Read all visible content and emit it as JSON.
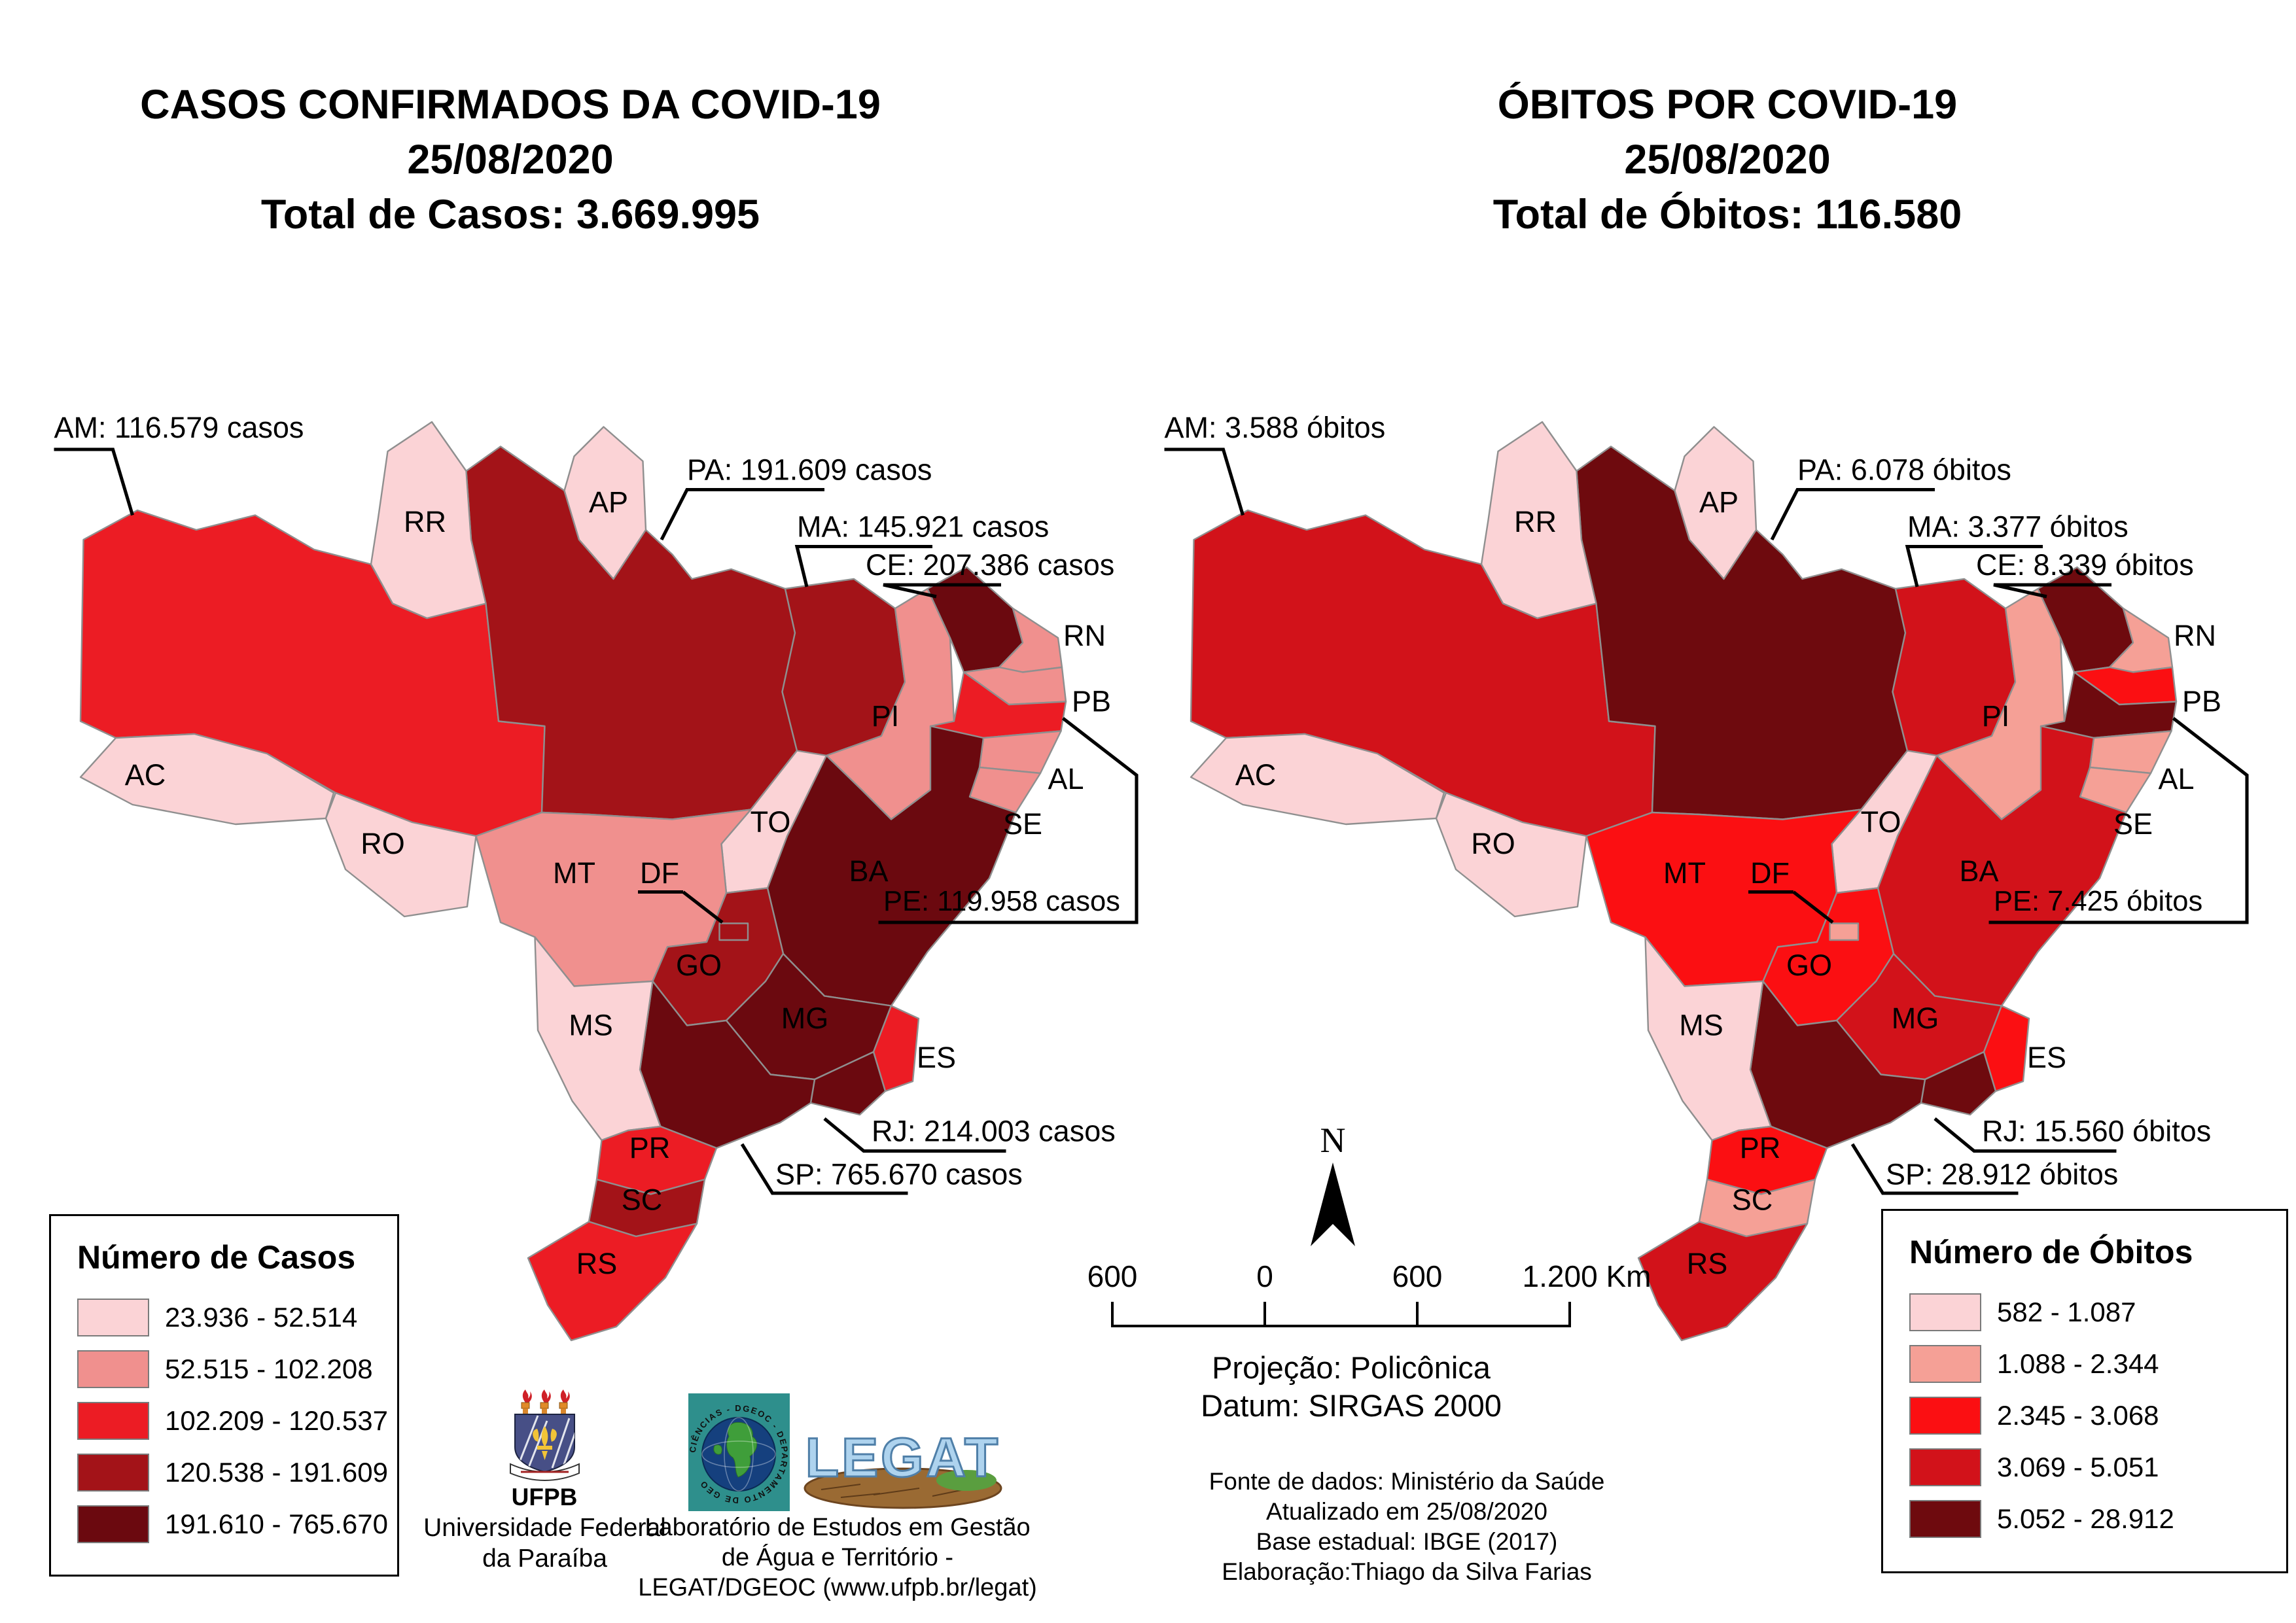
{
  "left_panel": {
    "title": {
      "line1": "CASOS CONFIRMADOS DA COVID-19",
      "line2": "25/08/2020",
      "line3": "Total de Casos: 3.669.995"
    },
    "legend": {
      "title": "Número de Casos",
      "classes": [
        {
          "range": "23.936 - 52.514",
          "color": "#FBD3D6"
        },
        {
          "range": "52.515 - 102.208",
          "color": "#F0908E"
        },
        {
          "range": "102.209 - 120.537",
          "color": "#EC1C24"
        },
        {
          "range": "120.538 - 191.609",
          "color": "#A31318"
        },
        {
          "range": "191.610 - 765.670",
          "color": "#6B090F"
        }
      ]
    },
    "annotations": [
      {
        "state": "AM",
        "text": "AM: 116.579 casos"
      },
      {
        "state": "PA",
        "text": "PA: 191.609 casos"
      },
      {
        "state": "MA",
        "text": "MA: 145.921 casos"
      },
      {
        "state": "CE",
        "text": "CE: 207.386 casos"
      },
      {
        "state": "PE",
        "text": "PE: 119.958 casos"
      },
      {
        "state": "RJ",
        "text": "RJ: 214.003 casos"
      },
      {
        "state": "SP",
        "text": "SP: 765.670 casos"
      }
    ],
    "state_classes": {
      "AC": 1,
      "RO": 1,
      "RR": 1,
      "AP": 1,
      "TO": 1,
      "MS": 1,
      "MT": 2,
      "PI": 2,
      "RN": 2,
      "PB": 2,
      "AL": 2,
      "SE": 2,
      "AM": 3,
      "PE": 3,
      "ES": 3,
      "PR": 3,
      "RS": 3,
      "PA": 4,
      "MA": 4,
      "GO": 4,
      "DF": 4,
      "SC": 4,
      "CE": 5,
      "BA": 5,
      "MG": 5,
      "RJ": 5,
      "SP": 5
    }
  },
  "right_panel": {
    "title": {
      "line1": "ÓBITOS POR COVID-19",
      "line2": "25/08/2020",
      "line3": "Total de Óbitos: 116.580"
    },
    "legend": {
      "title": "Número de Óbitos",
      "classes": [
        {
          "range": "582 - 1.087",
          "color": "#FBD3D6"
        },
        {
          "range": "1.088 - 2.344",
          "color": "#F5A096"
        },
        {
          "range": "2.345 - 3.068",
          "color": "#FB0F12"
        },
        {
          "range": "3.069 - 5.051",
          "color": "#D2121A"
        },
        {
          "range": "5.052 - 28.912",
          "color": "#6E0A0E"
        }
      ]
    },
    "annotations": [
      {
        "state": "AM",
        "text": "AM: 3.588 óbitos"
      },
      {
        "state": "PA",
        "text": "PA: 6.078 óbitos"
      },
      {
        "state": "MA",
        "text": "MA: 3.377 óbitos"
      },
      {
        "state": "CE",
        "text": "CE: 8.339 óbitos"
      },
      {
        "state": "PE",
        "text": "PE: 7.425 óbitos"
      },
      {
        "state": "RJ",
        "text": "RJ: 15.560 óbitos"
      },
      {
        "state": "SP",
        "text": "SP: 28.912 óbitos"
      }
    ],
    "state_classes": {
      "AC": 1,
      "RO": 1,
      "RR": 1,
      "AP": 1,
      "TO": 1,
      "MS": 1,
      "PI": 2,
      "RN": 2,
      "AL": 2,
      "SE": 2,
      "SC": 2,
      "DF": 2,
      "MT": 3,
      "GO": 3,
      "PR": 3,
      "ES": 3,
      "PB": 3,
      "AM": 4,
      "MA": 4,
      "MG": 4,
      "BA": 4,
      "RS": 4,
      "CE": 5,
      "PA": 5,
      "PE": 5,
      "RJ": 5,
      "SP": 5
    }
  },
  "cartography": {
    "north_label": "N",
    "scale_ticks": [
      "600",
      "0",
      "600",
      "1.200 Km"
    ],
    "projection": "Projeção: Policônica",
    "datum": "Datum: SIRGAS 2000"
  },
  "source_note": {
    "line1": "Fonte de dados: Ministério da Saúde",
    "line2": "Atualizado em 25/08/2020",
    "line3": "Base estadual: IBGE (2017)",
    "line4": "Elaboração:Thiago da Silva Farias"
  },
  "credits": {
    "ufpb_acronym": "UFPB",
    "university": {
      "line1": "Universidade Federal",
      "line2": "da Paraíba"
    },
    "lab": {
      "line1": "Laboratório de Estudos em Gestão",
      "line2": "de Água e Território -",
      "line3": "LEGAT/DGEOC (www.ufpb.br/legat)"
    },
    "legat_logo_text": "LEGAT",
    "dgeoc_arc_text": "CIÊNCIAS - DGEOC - DEPARTAMENTO DE GEO"
  },
  "chart_data": {
    "type": "choropleth_map",
    "maps": [
      {
        "title": "CASOS CONFIRMADOS DA COVID-19",
        "date": "25/08/2020",
        "total": 3669995,
        "unit": "casos",
        "annotated_values": {
          "AM": 116579,
          "PA": 191609,
          "MA": 145921,
          "CE": 207386,
          "PE": 119958,
          "RJ": 214003,
          "SP": 765670
        },
        "class_breaks": [
          "23.936 - 52.514",
          "52.515 - 102.208",
          "102.209 - 120.537",
          "120.538 - 191.609",
          "191.610 - 765.670"
        ]
      },
      {
        "title": "ÓBITOS POR COVID-19",
        "date": "25/08/2020",
        "total": 116580,
        "unit": "óbitos",
        "annotated_values": {
          "AM": 3588,
          "PA": 6078,
          "MA": 3377,
          "CE": 8339,
          "PE": 7425,
          "RJ": 15560,
          "SP": 28912
        },
        "class_breaks": [
          "582 - 1.087",
          "1.088 - 2.344",
          "2.345 - 3.068",
          "3.069 - 5.051",
          "5.052 - 28.912"
        ]
      }
    ]
  }
}
